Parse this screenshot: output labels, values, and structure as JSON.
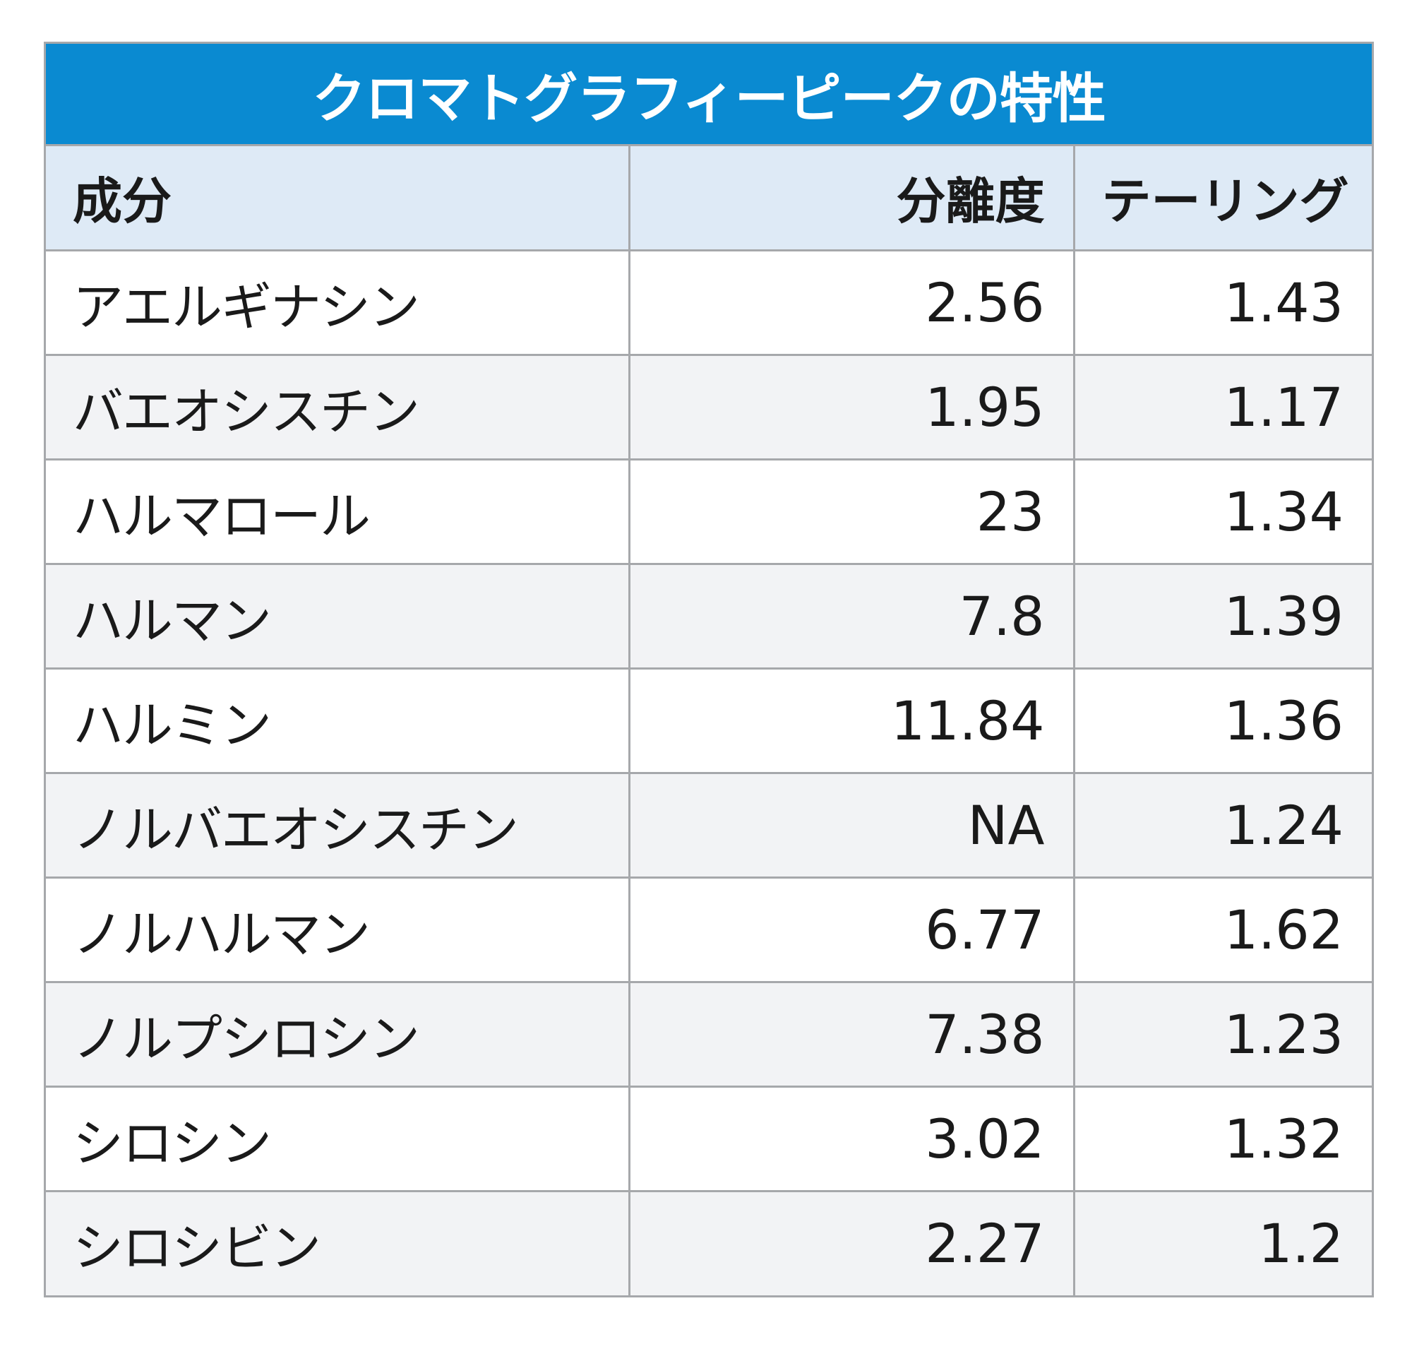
{
  "title": "クロマトグラフィーピークの特性",
  "columns": [
    "成分",
    "分離度",
    "テーリング"
  ],
  "rows": [
    {
      "component": "アエルギナシン",
      "resolution": "2.56",
      "tailing": "1.43"
    },
    {
      "component": "バエオシスチン",
      "resolution": "1.95",
      "tailing": "1.17"
    },
    {
      "component": "ハルマロール",
      "resolution": "23",
      "tailing": "1.34"
    },
    {
      "component": "ハルマン",
      "resolution": "7.8",
      "tailing": "1.39"
    },
    {
      "component": "ハルミン",
      "resolution": "11.84",
      "tailing": "1.36"
    },
    {
      "component": "ノルバエオシスチン",
      "resolution": "NA",
      "tailing": "1.24"
    },
    {
      "component": "ノルハルマン",
      "resolution": "6.77",
      "tailing": "1.62"
    },
    {
      "component": "ノルプシロシン",
      "resolution": "7.38",
      "tailing": "1.23"
    },
    {
      "component": "シロシン",
      "resolution": "3.02",
      "tailing": "1.32"
    },
    {
      "component": "シロシビン",
      "resolution": "2.27",
      "tailing": "1.2"
    }
  ],
  "colors": {
    "header_bar": "#0a8ad1",
    "column_header_bg": "#deeaf6",
    "row_alt_bg": "#f2f3f5",
    "border": "#a6a8ab"
  }
}
